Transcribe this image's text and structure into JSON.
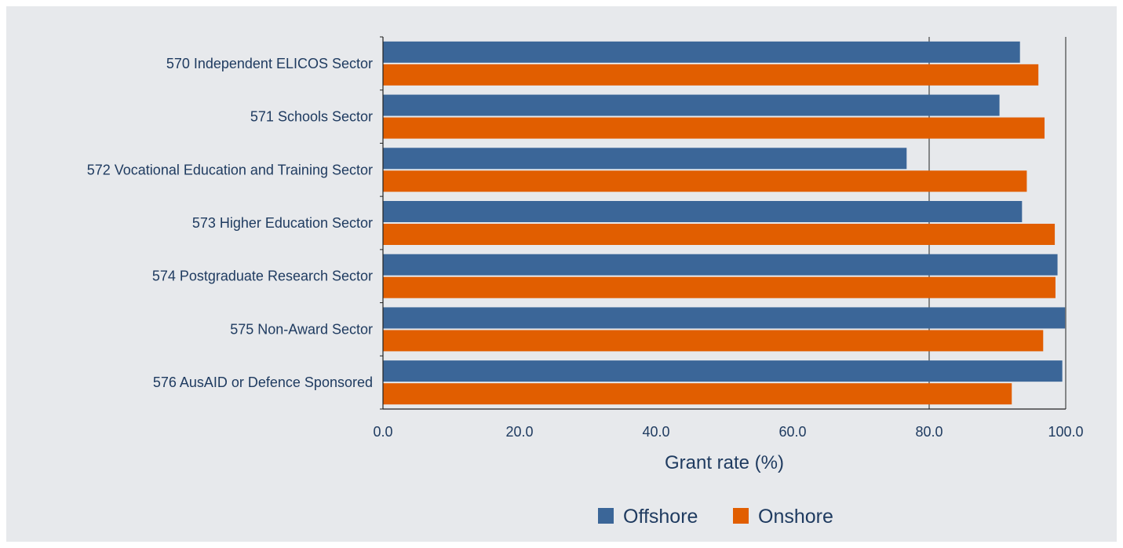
{
  "colors": {
    "background": "#e7e9ec",
    "offshore": "#3b6698",
    "onshore": "#e15e00",
    "text": "#1f3b60",
    "axis": "#222222"
  },
  "chart_data": {
    "type": "bar",
    "orientation": "horizontal",
    "title": "",
    "xlabel": "Grant rate (%)",
    "ylabel": "",
    "xlim": [
      0,
      100
    ],
    "x_ticks": [
      "0.0",
      "20.0",
      "40.0",
      "60.0",
      "80.0",
      "100.0"
    ],
    "grid": "vertical lines at 80 and 100",
    "legend_position": "bottom",
    "categories": [
      "570 Independent ELICOS Sector",
      "571 Schools Sector",
      "572 Vocational Education and Training Sector",
      "573 Higher Education Sector",
      "574 Postgraduate Research Sector",
      "575 Non-Award Sector",
      "576 AusAID or Defence Sponsored"
    ],
    "series": [
      {
        "name": "Offshore",
        "color": "#3b6698",
        "values": [
          93.3,
          90.3,
          76.7,
          93.6,
          98.8,
          99.9,
          99.5
        ]
      },
      {
        "name": "Onshore",
        "color": "#e15e00",
        "values": [
          96.0,
          96.9,
          94.3,
          98.4,
          98.5,
          96.7,
          92.1
        ]
      }
    ]
  }
}
